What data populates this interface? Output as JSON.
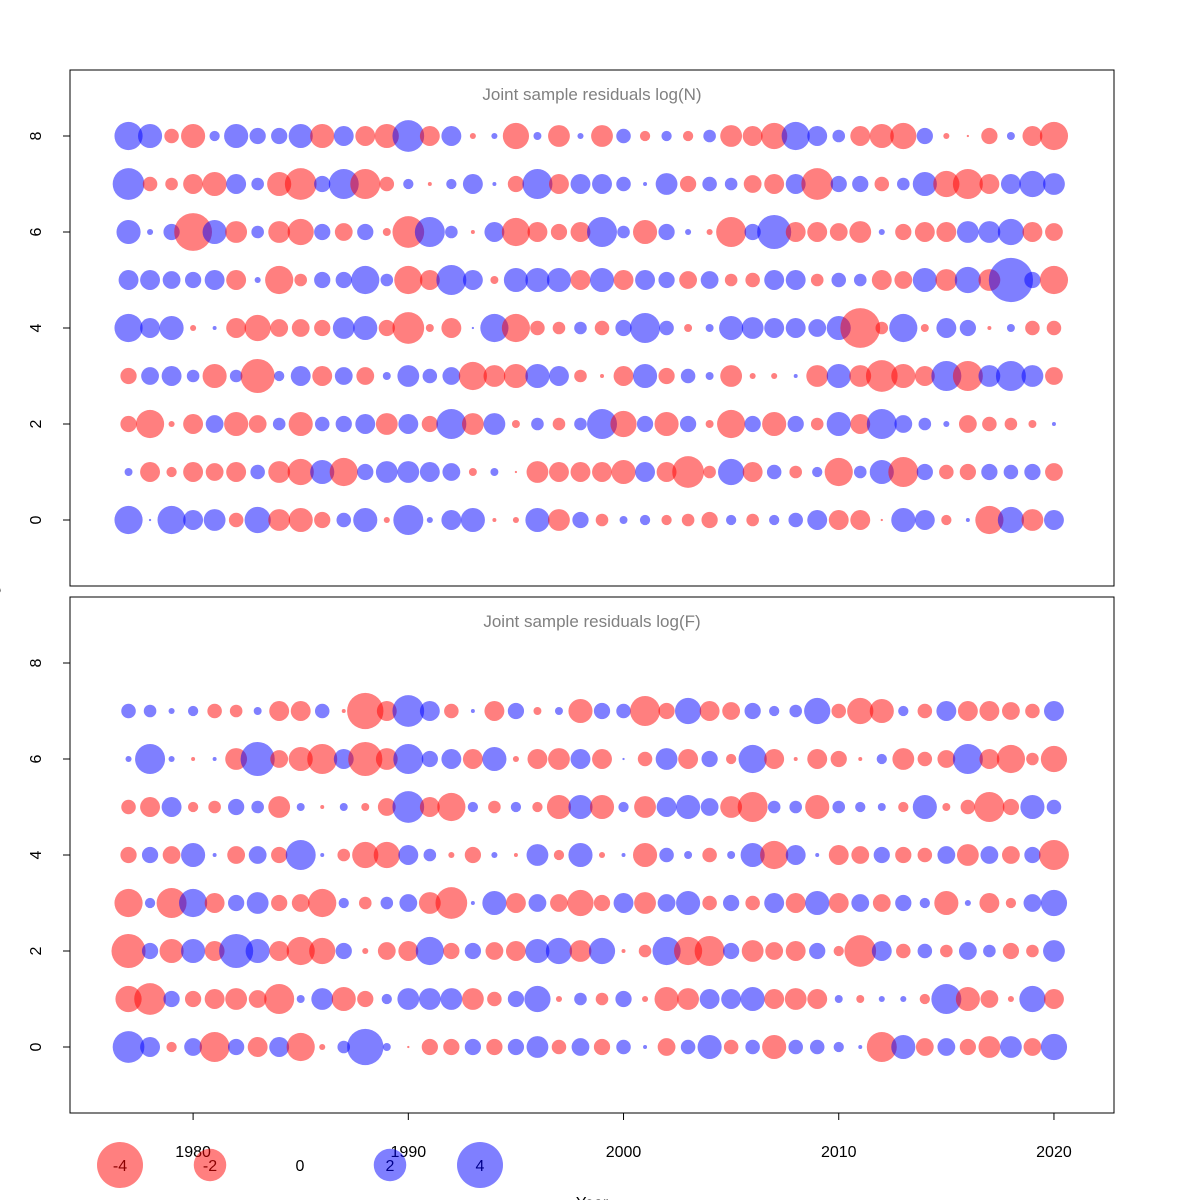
{
  "chart_data": [
    {
      "type": "bubble",
      "title": "Joint sample residuals log(N)",
      "ylabel": "Age",
      "x": [
        1977,
        1978,
        1979,
        1980,
        1981,
        1982,
        1983,
        1984,
        1985,
        1986,
        1987,
        1988,
        1989,
        1990,
        1991,
        1992,
        1993,
        1994,
        1995,
        1996,
        1997,
        1998,
        1999,
        2000,
        2001,
        2002,
        2003,
        2004,
        2005,
        2006,
        2007,
        2008,
        2009,
        2010,
        2011,
        2012,
        2013,
        2014,
        2015,
        2016,
        2017,
        2018,
        2019,
        2020
      ],
      "ages": [
        0,
        1,
        2,
        3,
        4,
        5,
        6,
        7,
        8
      ],
      "values": [
        [
          1.5,
          0.01,
          1.5,
          0.75,
          0.9,
          -0.4,
          1.3,
          -0.9,
          -1.1,
          -0.5,
          0.4,
          1.1,
          -0.07,
          1.7,
          0.07,
          0.75,
          1.1,
          -0.03,
          -0.07,
          1.1,
          -0.9,
          0.5,
          -0.3,
          0.12,
          0.2,
          -0.2,
          -0.3,
          -0.5,
          0.2,
          -0.3,
          0.2,
          0.4,
          0.75,
          -0.75,
          -0.75,
          -0.01,
          1.1,
          0.75,
          -0.2,
          0.03,
          -1.5,
          1.3,
          -0.9,
          0.75
        ],
        [
          0.12,
          -0.75,
          -0.2,
          -0.75,
          -0.6,
          -0.75,
          0.4,
          -0.9,
          -1.3,
          1.1,
          -1.5,
          0.5,
          0.9,
          0.9,
          0.75,
          0.6,
          -0.12,
          0.12,
          -0.01,
          -0.9,
          -0.75,
          -0.75,
          -0.75,
          -1.1,
          0.75,
          -0.75,
          -1.9,
          -0.3,
          1.3,
          -0.75,
          0.4,
          -0.3,
          0.2,
          -1.5,
          0.3,
          1.1,
          -1.7,
          0.5,
          -0.4,
          -0.5,
          0.5,
          0.4,
          0.5,
          -0.6
        ],
        [
          -0.5,
          -1.5,
          -0.07,
          -0.75,
          0.6,
          -1.1,
          -0.6,
          0.3,
          -1.1,
          0.4,
          0.5,
          0.75,
          -0.9,
          0.75,
          -0.5,
          1.7,
          -0.9,
          0.9,
          -0.12,
          0.3,
          -0.3,
          0.3,
          1.7,
          -1.3,
          0.5,
          -1.1,
          0.5,
          -0.12,
          -1.5,
          0.5,
          -1.1,
          0.5,
          -0.3,
          1.1,
          -0.75,
          1.7,
          0.6,
          0.3,
          0.07,
          -0.6,
          -0.4,
          -0.3,
          -0.12,
          0.03
        ],
        [
          -0.5,
          0.6,
          0.75,
          0.3,
          -1.1,
          0.3,
          -2.2,
          0.2,
          0.75,
          -0.75,
          0.6,
          -0.6,
          0.12,
          0.9,
          0.4,
          0.6,
          -1.5,
          -0.9,
          -1.1,
          1.1,
          0.75,
          -0.3,
          -0.03,
          -0.75,
          1.1,
          -0.5,
          0.4,
          0.12,
          -0.9,
          -0.07,
          -0.07,
          0.03,
          -0.9,
          1.1,
          -0.9,
          -1.9,
          -1.1,
          -0.75,
          1.7,
          -1.7,
          0.9,
          1.7,
          0.9,
          -0.6
        ],
        [
          1.5,
          0.75,
          1.1,
          -0.07,
          0.03,
          -0.75,
          -1.3,
          -0.6,
          -0.6,
          -0.5,
          0.9,
          1.1,
          -0.5,
          -1.9,
          -0.12,
          -0.75,
          0.01,
          1.5,
          -1.5,
          -0.4,
          -0.3,
          0.3,
          -0.4,
          0.5,
          1.7,
          0.4,
          -0.12,
          0.12,
          1.1,
          0.9,
          0.75,
          0.75,
          0.6,
          1.1,
          -3,
          -0.3,
          1.5,
          -0.12,
          0.75,
          0.5,
          -0.03,
          0.12,
          -0.4,
          -0.4
        ],
        [
          0.75,
          0.75,
          0.6,
          0.5,
          0.75,
          -0.75,
          0.07,
          -1.5,
          -0.3,
          0.5,
          0.5,
          1.5,
          0.3,
          -1.5,
          -0.75,
          1.7,
          0.75,
          -0.12,
          1.1,
          1.1,
          1.1,
          -0.75,
          1.1,
          -0.75,
          0.75,
          0.5,
          -0.6,
          0.6,
          -0.3,
          -0.4,
          0.75,
          0.75,
          -0.3,
          0.4,
          0.3,
          -0.75,
          -0.6,
          1.1,
          -0.9,
          1.3,
          -0.9,
          3.7,
          0.5,
          -1.5
        ],
        [
          1.1,
          0.07,
          0.5,
          -2.7,
          1.1,
          -0.9,
          0.3,
          -0.9,
          -1.3,
          0.5,
          -0.6,
          0.5,
          -0.12,
          -1.9,
          1.7,
          0.3,
          -0.03,
          0.75,
          -1.5,
          -0.75,
          -0.5,
          -0.75,
          1.7,
          0.3,
          -1.1,
          0.5,
          0.07,
          -0.07,
          -1.7,
          0.5,
          2.2,
          -0.75,
          -0.75,
          -0.6,
          -0.9,
          0.07,
          -0.5,
          -0.75,
          -0.75,
          0.9,
          0.9,
          1.3,
          -0.75,
          -0.6
        ],
        [
          1.9,
          -0.4,
          -0.3,
          -0.75,
          -1.1,
          0.75,
          0.3,
          -1.1,
          -1.9,
          0.5,
          1.7,
          -1.7,
          -0.4,
          0.2,
          -0.03,
          0.2,
          0.75,
          0.03,
          -0.5,
          1.7,
          -0.75,
          0.75,
          0.75,
          0.4,
          0.03,
          0.9,
          -0.5,
          0.4,
          0.3,
          -0.6,
          -0.75,
          0.75,
          -1.9,
          0.5,
          0.5,
          -0.4,
          0.3,
          1.1,
          -1.3,
          -1.7,
          -0.75,
          0.75,
          1.3,
          0.9
        ],
        [
          1.5,
          1.1,
          -0.4,
          -1.1,
          0.2,
          1.1,
          0.5,
          0.5,
          1.1,
          -1.1,
          0.75,
          -0.75,
          -1.1,
          1.9,
          -0.75,
          0.75,
          -0.07,
          0.07,
          -1.3,
          0.12,
          -0.9,
          0.07,
          -0.9,
          0.4,
          -0.2,
          0.2,
          -0.2,
          0.3,
          -0.9,
          -0.75,
          -1.3,
          1.5,
          0.75,
          0.3,
          -0.75,
          -1.1,
          -1.3,
          0.5,
          -0.07,
          -0.01,
          -0.5,
          0.12,
          -0.75,
          -1.5
        ]
      ],
      "colors": {
        "negative": "#ff0000",
        "positive": "#0000ff"
      },
      "opacity": 0.5,
      "xlim": [
        1974.28,
        2022.79
      ],
      "ylim": [
        -1.375,
        9.375
      ],
      "yticks": [
        0,
        2,
        4,
        6,
        8
      ]
    },
    {
      "type": "bubble",
      "title": "Joint sample residuals log(F)",
      "xlabel": "Year",
      "x": [
        1977,
        1978,
        1979,
        1980,
        1981,
        1982,
        1983,
        1984,
        1985,
        1986,
        1987,
        1988,
        1989,
        1990,
        1991,
        1992,
        1993,
        1994,
        1995,
        1996,
        1997,
        1998,
        1999,
        2000,
        2001,
        2002,
        2003,
        2004,
        2005,
        2006,
        2007,
        2008,
        2009,
        2010,
        2011,
        2012,
        2013,
        2014,
        2015,
        2016,
        2017,
        2018,
        2019,
        2020
      ],
      "ages": [
        0,
        1,
        2,
        3,
        4,
        5,
        6,
        7
      ],
      "values": [
        [
          1.9,
          0.75,
          -0.2,
          0.6,
          -1.7,
          0.5,
          -0.75,
          0.75,
          -1.5,
          -0.07,
          0.3,
          2.5,
          0.12,
          -0.01,
          -0.5,
          -0.5,
          0.5,
          -0.5,
          0.5,
          0.9,
          -0.4,
          0.6,
          -0.5,
          0.4,
          0.03,
          -0.6,
          0.4,
          1.1,
          -0.4,
          0.4,
          -1.1,
          0.4,
          0.4,
          0.2,
          0.03,
          -1.7,
          1.1,
          -0.6,
          0.6,
          -0.5,
          -0.9,
          0.9,
          -0.6,
          1.3
        ],
        [
          -1.3,
          -1.9,
          0.5,
          -0.5,
          -0.75,
          -0.9,
          -0.6,
          -1.7,
          0.12,
          0.9,
          -1.1,
          -0.5,
          0.2,
          0.9,
          0.9,
          0.9,
          -0.9,
          -0.4,
          0.5,
          1.3,
          -0.07,
          0.3,
          -0.3,
          0.5,
          -0.07,
          -1.1,
          -0.9,
          0.75,
          0.75,
          1.1,
          -0.75,
          -0.9,
          -0.75,
          0.12,
          -0.12,
          0.07,
          0.07,
          -0.2,
          1.7,
          -1.1,
          -0.6,
          -0.07,
          1.3,
          -0.75
        ],
        [
          -2.2,
          0.5,
          -1.1,
          1.1,
          -0.75,
          2.2,
          1.1,
          -0.75,
          -1.5,
          -1.3,
          0.5,
          -0.07,
          -0.6,
          -0.75,
          1.5,
          -0.5,
          0.5,
          -0.6,
          -0.75,
          1.1,
          1.3,
          -0.9,
          1.3,
          -0.03,
          -0.3,
          1.5,
          -1.5,
          -1.7,
          0.5,
          -0.9,
          -0.6,
          -0.75,
          0.5,
          -0.2,
          -1.9,
          0.75,
          -0.4,
          0.4,
          -0.3,
          0.6,
          0.3,
          -0.5,
          -0.3,
          0.9
        ],
        [
          -1.5,
          0.2,
          -1.7,
          1.5,
          -0.75,
          0.5,
          0.9,
          -0.5,
          -0.6,
          -1.5,
          0.2,
          -0.3,
          0.3,
          0.6,
          -0.9,
          -1.9,
          0.03,
          1.1,
          -0.75,
          0.6,
          -0.6,
          -1.3,
          -0.5,
          0.75,
          -0.9,
          0.6,
          1.1,
          -0.4,
          0.5,
          -0.4,
          0.75,
          -0.75,
          1.1,
          -0.75,
          0.6,
          -0.6,
          0.5,
          0.2,
          -1.1,
          0.07,
          -0.75,
          -0.2,
          0.6,
          1.3
        ],
        [
          -0.5,
          0.5,
          -0.6,
          1.1,
          0.03,
          -0.6,
          0.6,
          -0.5,
          1.7,
          0.03,
          -0.3,
          -1.3,
          -1.3,
          0.75,
          0.3,
          -0.07,
          -0.5,
          0.07,
          -0.03,
          0.9,
          -0.2,
          1.1,
          -0.07,
          0.03,
          -1.1,
          0.4,
          0.12,
          -0.4,
          0.12,
          1.1,
          -1.5,
          0.75,
          0.03,
          -0.75,
          -0.6,
          0.5,
          -0.5,
          -0.4,
          0.6,
          -0.9,
          0.6,
          -0.6,
          0.5,
          -1.7
        ],
        [
          -0.4,
          -0.75,
          0.75,
          -0.2,
          -0.3,
          0.5,
          0.3,
          -0.9,
          0.12,
          -0.03,
          0.12,
          -0.12,
          -0.6,
          1.9,
          -0.75,
          -1.5,
          0.2,
          -0.3,
          0.2,
          -0.2,
          -1.1,
          1.1,
          -1.1,
          0.2,
          -0.9,
          0.75,
          1.1,
          0.6,
          -0.9,
          -1.7,
          0.3,
          0.3,
          -1.1,
          0.3,
          0.2,
          0.12,
          -0.2,
          1.1,
          -0.12,
          -0.4,
          -1.7,
          -0.5,
          1.1,
          0.4
        ],
        [
          0.07,
          1.7,
          0.07,
          -0.03,
          0.03,
          -0.9,
          2.2,
          -0.6,
          -1.1,
          -1.7,
          0.75,
          -2.2,
          -0.9,
          1.7,
          0.5,
          0.75,
          -0.75,
          1.1,
          -0.07,
          -0.75,
          -0.9,
          0.75,
          -0.75,
          0.01,
          -0.4,
          0.9,
          -0.75,
          0.5,
          -0.2,
          1.5,
          -0.75,
          -0.03,
          -0.75,
          -0.5,
          -0.03,
          0.2,
          -0.9,
          -0.4,
          -0.6,
          1.7,
          -0.75,
          -1.5,
          -0.3,
          -1.3
        ],
        [
          0.4,
          0.3,
          0.07,
          0.2,
          -0.4,
          -0.3,
          0.12,
          -0.75,
          -0.75,
          0.4,
          -0.03,
          -2.5,
          -0.75,
          1.9,
          0.75,
          -0.4,
          0.03,
          -0.75,
          0.5,
          -0.12,
          0.12,
          -1.1,
          0.5,
          0.4,
          -1.7,
          -0.5,
          1.3,
          -0.75,
          -0.6,
          0.5,
          0.2,
          0.3,
          1.3,
          -0.4,
          -1.3,
          -1.1,
          0.2,
          -0.4,
          0.75,
          -0.75,
          -0.75,
          -0.6,
          -0.4,
          0.75
        ]
      ],
      "colors": {
        "negative": "#ff0000",
        "positive": "#0000ff"
      },
      "opacity": 0.5,
      "xlim": [
        1974.28,
        2022.79
      ],
      "xticks": [
        1980,
        1990,
        2000,
        2010,
        2020
      ],
      "ylim": [
        -1.375,
        9.375
      ],
      "yticks": [
        0,
        2,
        4,
        6,
        8
      ]
    }
  ],
  "legend": {
    "values": [
      -4,
      -2,
      0,
      2,
      4
    ]
  }
}
